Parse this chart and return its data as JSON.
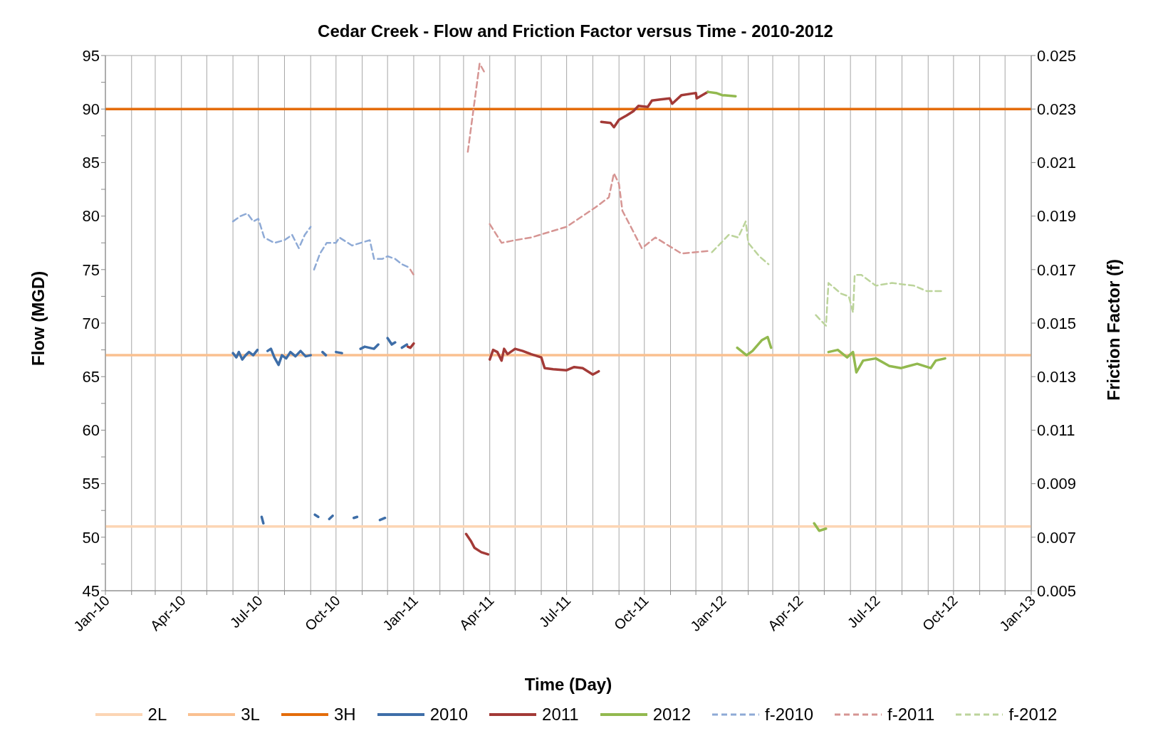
{
  "chart_data": {
    "type": "line",
    "title": "Cedar Creek - Flow and Friction Factor versus Time - 2010-2012",
    "xlabel": "Time (Day)",
    "ylabel": "Flow (MGD)",
    "y2label": "Friction Factor (f)",
    "xlim": [
      "2010-01-01",
      "2013-01-01"
    ],
    "xticks": [
      {
        "value": "2010-01-01",
        "label": "Jan-10"
      },
      {
        "value": "2010-02-01",
        "label": null
      },
      {
        "value": "2010-03-01",
        "label": null
      },
      {
        "value": "2010-04-01",
        "label": "Apr-10"
      },
      {
        "value": "2010-05-01",
        "label": null
      },
      {
        "value": "2010-06-01",
        "label": null
      },
      {
        "value": "2010-07-01",
        "label": "Jul-10"
      },
      {
        "value": "2010-08-01",
        "label": null
      },
      {
        "value": "2010-09-01",
        "label": null
      },
      {
        "value": "2010-10-01",
        "label": "Oct-10"
      },
      {
        "value": "2010-11-01",
        "label": null
      },
      {
        "value": "2010-12-01",
        "label": null
      },
      {
        "value": "2011-01-01",
        "label": "Jan-11"
      },
      {
        "value": "2011-02-01",
        "label": null
      },
      {
        "value": "2011-03-01",
        "label": null
      },
      {
        "value": "2011-04-01",
        "label": "Apr-11"
      },
      {
        "value": "2011-05-01",
        "label": null
      },
      {
        "value": "2011-06-01",
        "label": null
      },
      {
        "value": "2011-07-01",
        "label": "Jul-11"
      },
      {
        "value": "2011-08-01",
        "label": null
      },
      {
        "value": "2011-09-01",
        "label": null
      },
      {
        "value": "2011-10-01",
        "label": "Oct-11"
      },
      {
        "value": "2011-11-01",
        "label": null
      },
      {
        "value": "2011-12-01",
        "label": null
      },
      {
        "value": "2012-01-01",
        "label": "Jan-12"
      },
      {
        "value": "2012-02-01",
        "label": null
      },
      {
        "value": "2012-03-01",
        "label": null
      },
      {
        "value": "2012-04-01",
        "label": "Apr-12"
      },
      {
        "value": "2012-05-01",
        "label": null
      },
      {
        "value": "2012-06-01",
        "label": null
      },
      {
        "value": "2012-07-01",
        "label": "Jul-12"
      },
      {
        "value": "2012-08-01",
        "label": null
      },
      {
        "value": "2012-09-01",
        "label": null
      },
      {
        "value": "2012-10-01",
        "label": "Oct-12"
      },
      {
        "value": "2012-11-01",
        "label": null
      },
      {
        "value": "2012-12-01",
        "label": null
      },
      {
        "value": "2013-01-01",
        "label": "Jan-13"
      }
    ],
    "ylim": [
      45,
      95
    ],
    "yticks": [
      45,
      {
        "value": 47.5,
        "label": null
      },
      50,
      {
        "value": 52.5,
        "label": null
      },
      55,
      {
        "value": 57.5,
        "label": null
      },
      60,
      {
        "value": 62.5,
        "label": null
      },
      65,
      {
        "value": 67.5,
        "label": null
      },
      70,
      {
        "value": 72.5,
        "label": null
      },
      75,
      {
        "value": 77.5,
        "label": null
      },
      80,
      {
        "value": 82.5,
        "label": null
      },
      85,
      {
        "value": 87.5,
        "label": null
      },
      90,
      {
        "value": 92.5,
        "label": null
      },
      95
    ],
    "y2lim": [
      0.005,
      0.025
    ],
    "y2ticks": [
      0.005,
      0.007,
      0.009,
      0.011,
      0.013,
      0.015,
      0.017,
      0.019,
      0.021,
      0.023,
      0.025
    ],
    "grid": true,
    "legend": "bottom",
    "marker": "none",
    "series": [
      {
        "name": "2L",
        "color": "#fcd5b4",
        "x": [
          "2010-01-01",
          "2013-01-01"
        ],
        "values": [
          51,
          51
        ]
      },
      {
        "name": "3L",
        "color": "#fac090",
        "x": [
          "2010-01-01",
          "2013-01-01"
        ],
        "values": [
          67,
          67
        ]
      },
      {
        "name": "3H",
        "color": "#e46c0a",
        "x": [
          "2010-01-01",
          "2013-01-01"
        ],
        "values": [
          90,
          90
        ]
      },
      {
        "name": "2010",
        "color": "#3e6ea8",
        "x": [
          "2010-06-01",
          "2010-06-05",
          "2010-06-08",
          "2010-06-12",
          "2010-06-16",
          "2010-06-20",
          "2010-06-25",
          "2010-06-30",
          "2010-07-03",
          "2010-07-05",
          "2010-07-07",
          "2010-07-09",
          "2010-07-12",
          "2010-07-16",
          "2010-07-20",
          "2010-07-25",
          "2010-07-29",
          "2010-08-03",
          "2010-08-08",
          "2010-08-14",
          "2010-08-20",
          "2010-08-26",
          "2010-09-01",
          "2010-09-04",
          "2010-09-06",
          "2010-09-10",
          "2010-09-13",
          "2010-09-15",
          "2010-09-19",
          "2010-09-21",
          "2010-09-23",
          "2010-09-27",
          "2010-09-29",
          "2010-10-01",
          "2010-10-08",
          "2010-10-12",
          "2010-10-22",
          "2010-10-26",
          "2010-10-28",
          "2010-10-30",
          "2010-11-04",
          "2010-11-15",
          "2010-11-20",
          "2010-11-21",
          "2010-11-22",
          "2010-11-28",
          "2010-11-29",
          "2010-12-01",
          "2010-12-06",
          "2010-12-10",
          "2010-12-14",
          "2010-12-18",
          "2010-12-24"
        ],
        "values": [
          67.2,
          66.8,
          67.3,
          66.6,
          67.0,
          67.3,
          67.0,
          67.5,
          null,
          51.9,
          51.3,
          null,
          67.4,
          67.6,
          66.8,
          66.1,
          67.0,
          66.7,
          67.3,
          66.9,
          67.4,
          66.9,
          67.0,
          null,
          52.1,
          51.9,
          null,
          67.3,
          67.0,
          null,
          51.7,
          52.0,
          null,
          67.3,
          67.2,
          null,
          51.8,
          51.9,
          null,
          67.6,
          67.8,
          67.6,
          68.0,
          null,
          51.6,
          51.8,
          null,
          68.6,
          68.0,
          68.2,
          null,
          67.7,
          68.0
        ]
      },
      {
        "name": "2011",
        "color": "#a33a37",
        "x": [
          "2010-12-25",
          "2010-12-28",
          "2011-01-01",
          "2011-01-10",
          "2011-03-04",
          "2011-03-10",
          "2011-03-14",
          "2011-03-22",
          "2011-03-30",
          "2011-03-31",
          "2011-04-01",
          "2011-04-05",
          "2011-04-10",
          "2011-04-15",
          "2011-04-18",
          "2011-04-22",
          "2011-05-01",
          "2011-05-10",
          "2011-05-20",
          "2011-06-01",
          "2011-06-05",
          "2011-06-15",
          "2011-07-01",
          "2011-07-10",
          "2011-07-20",
          "2011-08-01",
          "2011-08-08",
          "2011-08-09",
          "2011-08-11",
          "2011-08-22",
          "2011-08-26",
          "2011-09-01",
          "2011-09-10",
          "2011-09-18",
          "2011-09-24",
          "2011-10-05",
          "2011-10-10",
          "2011-10-20",
          "2011-10-31",
          "2011-11-03",
          "2011-11-14",
          "2011-12-01",
          "2011-12-02",
          "2011-12-15"
        ],
        "values": [
          67.8,
          67.7,
          68.1,
          null,
          50.3,
          49.6,
          49.0,
          48.6,
          48.4,
          null,
          66.6,
          67.5,
          67.3,
          66.5,
          67.6,
          67.1,
          67.6,
          67.4,
          67.1,
          66.8,
          65.8,
          65.7,
          65.6,
          65.9,
          65.8,
          65.2,
          65.5,
          null,
          88.8,
          88.7,
          88.3,
          89.0,
          89.4,
          89.8,
          90.3,
          90.2,
          90.8,
          90.9,
          91.0,
          90.5,
          91.3,
          91.5,
          91.0,
          91.6
        ]
      },
      {
        "name": "2012",
        "color": "#92b94f",
        "x": [
          "2011-12-15",
          "2011-12-25",
          "2012-01-01",
          "2012-01-17",
          "2012-01-18",
          "2012-01-19",
          "2012-01-30",
          "2012-02-06",
          "2012-02-17",
          "2012-02-24",
          "2012-02-28",
          "2012-03-15",
          "2012-04-19",
          "2012-04-25",
          "2012-05-03",
          "2012-05-04",
          "2012-05-06",
          "2012-05-17",
          "2012-05-28",
          "2012-06-04",
          "2012-06-08",
          "2012-06-16",
          "2012-07-01",
          "2012-07-17",
          "2012-07-31",
          "2012-08-19",
          "2012-09-04",
          "2012-09-10",
          "2012-09-21"
        ],
        "values": [
          91.6,
          91.5,
          91.3,
          91.2,
          null,
          67.7,
          67.0,
          67.4,
          68.4,
          68.7,
          67.7,
          null,
          51.3,
          50.6,
          50.8,
          null,
          67.3,
          67.5,
          66.8,
          67.3,
          65.4,
          66.5,
          66.7,
          66.0,
          65.8,
          66.2,
          65.8,
          66.5,
          66.7
        ]
      },
      {
        "name": "f-2010",
        "color": "#8eaad6",
        "axis": "y2",
        "line_style": "dashed",
        "x": [
          "2010-06-01",
          "2010-06-10",
          "2010-06-18",
          "2010-06-25",
          "2010-07-01",
          "2010-07-08",
          "2010-07-20",
          "2010-08-01",
          "2010-08-10",
          "2010-08-18",
          "2010-08-25",
          "2010-09-01",
          "2010-09-03",
          "2010-09-05",
          "2010-09-12",
          "2010-09-20",
          "2010-10-01",
          "2010-10-05",
          "2010-10-20",
          "2010-11-10",
          "2010-11-15",
          "2010-11-25",
          "2010-12-01",
          "2010-12-10",
          "2010-12-18",
          "2010-12-25"
        ],
        "values": [
          0.0188,
          0.019,
          0.0191,
          0.0188,
          0.0189,
          0.0182,
          0.018,
          0.0181,
          0.0183,
          0.0178,
          0.0183,
          0.0186,
          null,
          0.017,
          0.0176,
          0.018,
          0.018,
          0.0182,
          0.0179,
          0.0181,
          0.0174,
          0.0174,
          0.0175,
          0.0174,
          0.0172,
          0.0171
        ]
      },
      {
        "name": "f-2011",
        "color": "#d69593",
        "axis": "y2",
        "line_style": "dashed",
        "x": [
          "2010-12-28",
          "2011-01-01",
          "2011-01-10",
          "2011-03-06",
          "2011-03-20",
          "2011-03-27",
          "2011-03-31",
          "2011-04-01",
          "2011-04-15",
          "2011-05-01",
          "2011-05-20",
          "2011-06-10",
          "2011-07-01",
          "2011-08-03",
          "2011-08-20",
          "2011-08-26",
          "2011-09-01",
          "2011-09-05",
          "2011-09-15",
          "2011-09-28",
          "2011-10-14",
          "2011-11-14",
          "2011-12-18"
        ],
        "values": [
          0.017,
          0.0168,
          null,
          0.0214,
          0.0247,
          0.0243,
          null,
          0.0187,
          0.018,
          0.0181,
          0.0182,
          0.0184,
          0.0186,
          0.0193,
          0.0197,
          0.0206,
          0.0202,
          0.0192,
          0.0186,
          0.0178,
          0.0182,
          0.0176,
          0.0177
        ]
      },
      {
        "name": "f-2012",
        "color": "#bcd49b",
        "axis": "y2",
        "line_style": "dashed",
        "x": [
          "2011-12-20",
          "2012-01-09",
          "2012-01-20",
          "2012-01-29",
          "2012-02-01",
          "2012-02-14",
          "2012-02-25",
          "2012-03-15",
          "2012-04-21",
          "2012-05-03",
          "2012-05-06",
          "2012-05-21",
          "2012-05-30",
          "2012-06-04",
          "2012-06-06",
          "2012-06-14",
          "2012-07-01",
          "2012-07-20",
          "2012-08-15",
          "2012-08-30",
          "2012-09-18"
        ],
        "values": [
          0.01765,
          0.0183,
          0.0182,
          0.0188,
          0.018,
          0.0175,
          0.0172,
          null,
          0.0153,
          0.0149,
          0.0165,
          0.0161,
          0.016,
          0.0154,
          0.0168,
          0.0168,
          0.0164,
          0.0165,
          0.0164,
          0.0162,
          0.0162
        ]
      }
    ]
  }
}
